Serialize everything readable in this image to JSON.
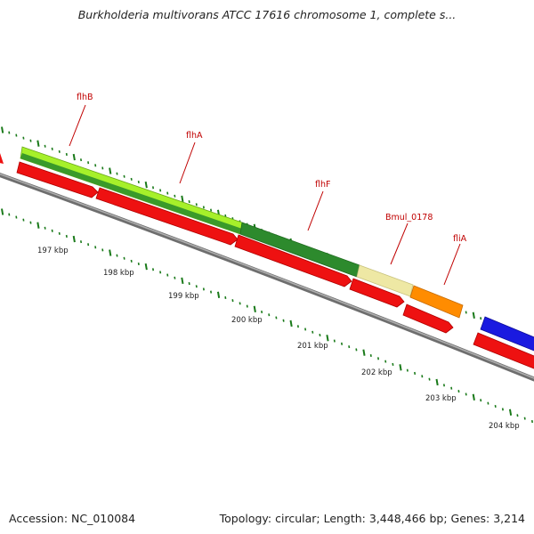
{
  "title": "Burkholderia multivorans ATCC 17616 chromosome 1, complete s...",
  "footer": {
    "accession": "Accession: NC_010084",
    "summary": "Topology: circular; Length: 3,448,466 bp; Genes: 3,214"
  },
  "scale_labels": [
    "197 kbp",
    "198 kbp",
    "199 kbp",
    "200 kbp",
    "201 kbp",
    "202 kbp",
    "203 kbp",
    "204 kbp"
  ],
  "gene_labels": [
    "flhB",
    "flhA",
    "flhF",
    "Bmul_0178",
    "fliA"
  ],
  "colors": {
    "backbone": "#808080",
    "cds_red": "#ee1111",
    "gene_lightgreen": "#99ee22",
    "gene_darkgreen": "#2a8a2a",
    "gene_pale": "#eee8a0",
    "gene_orange": "#ff8800",
    "gene_blue": "#1122dd",
    "tick_green": "#1a7a1a",
    "label_red": "#c00000"
  }
}
